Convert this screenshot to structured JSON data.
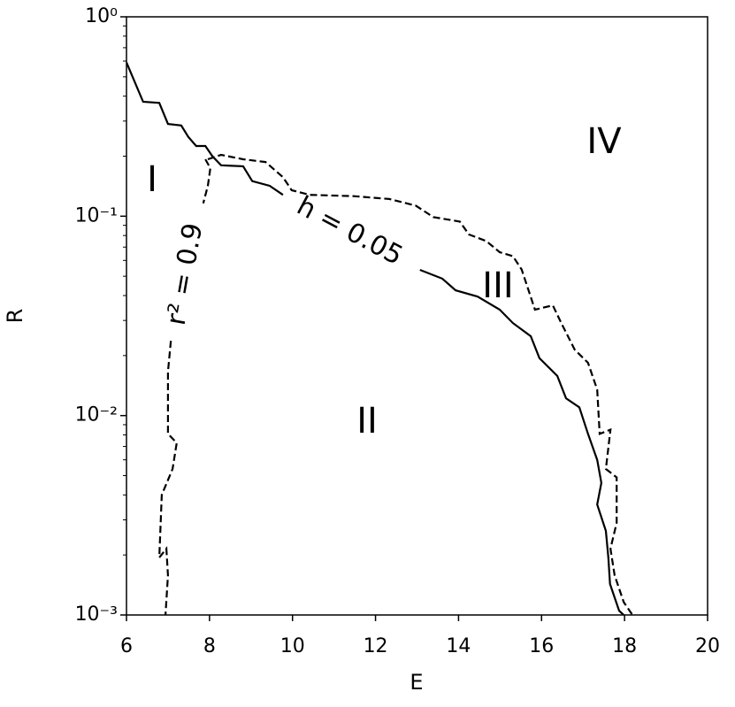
{
  "chart_data": {
    "type": "line",
    "x_label": "E",
    "y_label": "R",
    "xlim": [
      6,
      20
    ],
    "ylim": [
      0.001,
      1
    ],
    "xticks": [
      6,
      8,
      10,
      12,
      14,
      16,
      18,
      20
    ],
    "yticks": [
      {
        "value": 1,
        "label": "10⁰"
      },
      {
        "value": 0.1,
        "label": "10⁻¹"
      },
      {
        "value": 0.01,
        "label": "10⁻²"
      },
      {
        "value": 0.001,
        "label": "10⁻³"
      }
    ],
    "log_y": true,
    "series": [
      {
        "color": "#000000",
        "dash": "solid",
        "x": [
          6.0,
          6.4,
          6.79,
          7.0,
          7.32,
          7.49,
          7.68,
          7.9,
          8.07,
          8.28,
          8.81,
          9.03,
          9.45,
          9.77,
          null,
          13.07,
          13.61,
          13.93,
          14.46,
          14.99,
          15.31,
          15.74,
          15.95,
          16.38,
          16.59,
          16.91,
          17.12,
          17.34,
          17.44,
          17.34,
          17.55,
          17.61,
          17.65,
          17.87,
          17.98
        ],
        "values": [
          0.59,
          0.375,
          0.37,
          0.29,
          0.285,
          0.25,
          0.225,
          0.225,
          0.2,
          0.18,
          0.178,
          0.15,
          0.142,
          0.128,
          null,
          0.0538,
          0.0486,
          0.0425,
          0.0395,
          0.034,
          0.0291,
          0.025,
          0.0194,
          0.0158,
          0.0122,
          0.011,
          0.0081,
          0.006,
          0.0046,
          0.00358,
          0.00264,
          0.00194,
          0.00143,
          0.00105,
          0.001
        ]
      },
      {
        "color": "#000000",
        "dash": "dashed",
        "x": [
          7.96,
          8.28,
          8.81,
          9.35,
          9.77,
          9.98,
          10.41,
          11.48,
          12.33,
          12.97,
          13.39,
          14.03,
          14.25,
          14.67,
          14.99,
          15.31,
          15.52,
          15.84,
          16.27,
          16.48,
          16.8,
          17.12,
          17.34,
          17.4,
          17.66,
          17.55,
          17.81,
          17.81,
          17.66,
          17.76,
          17.98,
          18.19
        ],
        "values": [
          0.193,
          0.203,
          0.193,
          0.187,
          0.157,
          0.135,
          0.128,
          0.126,
          0.122,
          0.113,
          0.099,
          0.094,
          0.081,
          0.075,
          0.066,
          0.063,
          0.054,
          0.034,
          0.0357,
          0.029,
          0.0214,
          0.0184,
          0.0135,
          0.0081,
          0.0085,
          0.0054,
          0.0049,
          0.0029,
          0.00215,
          0.00158,
          0.00116,
          0.001
        ]
      },
      {
        "color": "#000000",
        "dash": "dashed",
        "x": [
          7.9,
          8.02,
          7.96,
          7.85,
          null,
          7.07,
          7.0,
          7.0,
          7.21,
          7.11,
          6.85,
          6.79,
          6.96,
          7.0,
          6.94
        ],
        "values": [
          0.193,
          0.174,
          0.142,
          0.116,
          null,
          0.0237,
          0.0166,
          0.0081,
          0.0073,
          0.0054,
          0.004,
          0.00194,
          0.00215,
          0.00158,
          0.001
        ]
      }
    ],
    "annotations": [
      "I",
      "II",
      "III",
      "IV",
      "h = 0.05",
      "r² = 0.9"
    ]
  }
}
